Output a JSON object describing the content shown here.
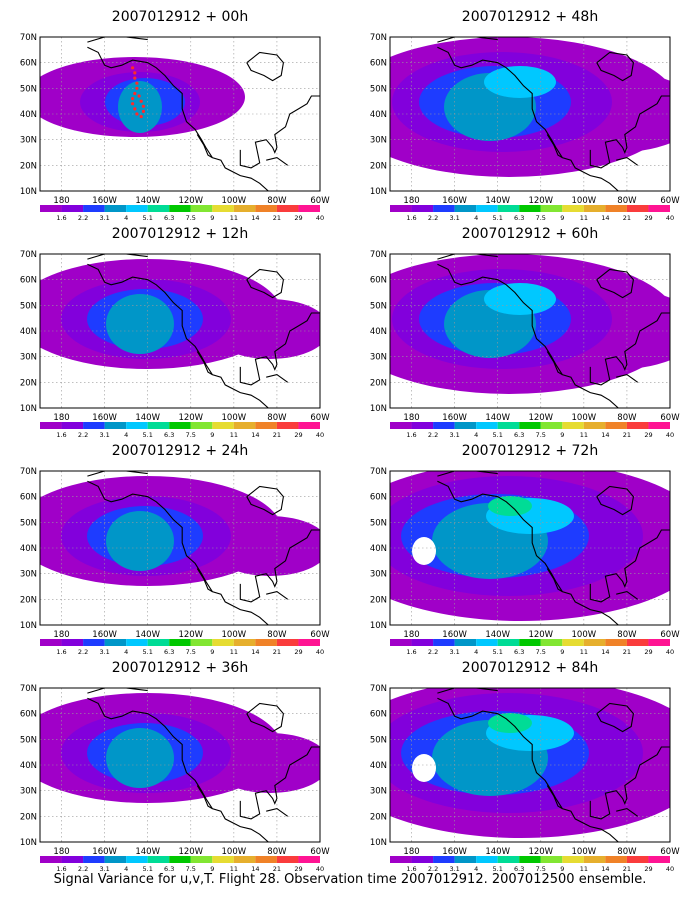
{
  "colorbar": {
    "colors": [
      "#a000c8",
      "#8200dc",
      "#1e3cff",
      "#0096c8",
      "#00c8ff",
      "#00dc96",
      "#00c800",
      "#82e632",
      "#e6dc32",
      "#e6af2d",
      "#f08228",
      "#fa3c3c",
      "#ff1493"
    ],
    "labels": [
      "1.6",
      "2.2",
      "3.1",
      "4",
      "5.1",
      "6.3",
      "7.5",
      "9",
      "11",
      "14",
      "21",
      "29",
      "40"
    ]
  },
  "axes": {
    "lat_labels": [
      "70N",
      "60N",
      "50N",
      "40N",
      "30N",
      "20N",
      "10N"
    ],
    "lon_labels": [
      "180",
      "160W",
      "140W",
      "120W",
      "100W",
      "80W",
      "60W"
    ]
  },
  "panels": [
    {
      "id": "p00",
      "title": "2007012912 + 00h",
      "level": 0
    },
    {
      "id": "p48",
      "title": "2007012912 + 48h",
      "level": 2
    },
    {
      "id": "p12",
      "title": "2007012912 + 12h",
      "level": 1
    },
    {
      "id": "p60",
      "title": "2007012912 + 60h",
      "level": 2
    },
    {
      "id": "p24",
      "title": "2007012912 + 24h",
      "level": 1
    },
    {
      "id": "p72",
      "title": "2007012912 + 72h",
      "level": 3
    },
    {
      "id": "p36",
      "title": "2007012912 + 36h",
      "level": 1
    },
    {
      "id": "p84",
      "title": "2007012912 + 84h",
      "level": 3
    }
  ],
  "footer": {
    "caption": "Signal Variance for u,v,T. Flight 28. Observation time 2007012912. 2007012500 ensemble."
  }
}
